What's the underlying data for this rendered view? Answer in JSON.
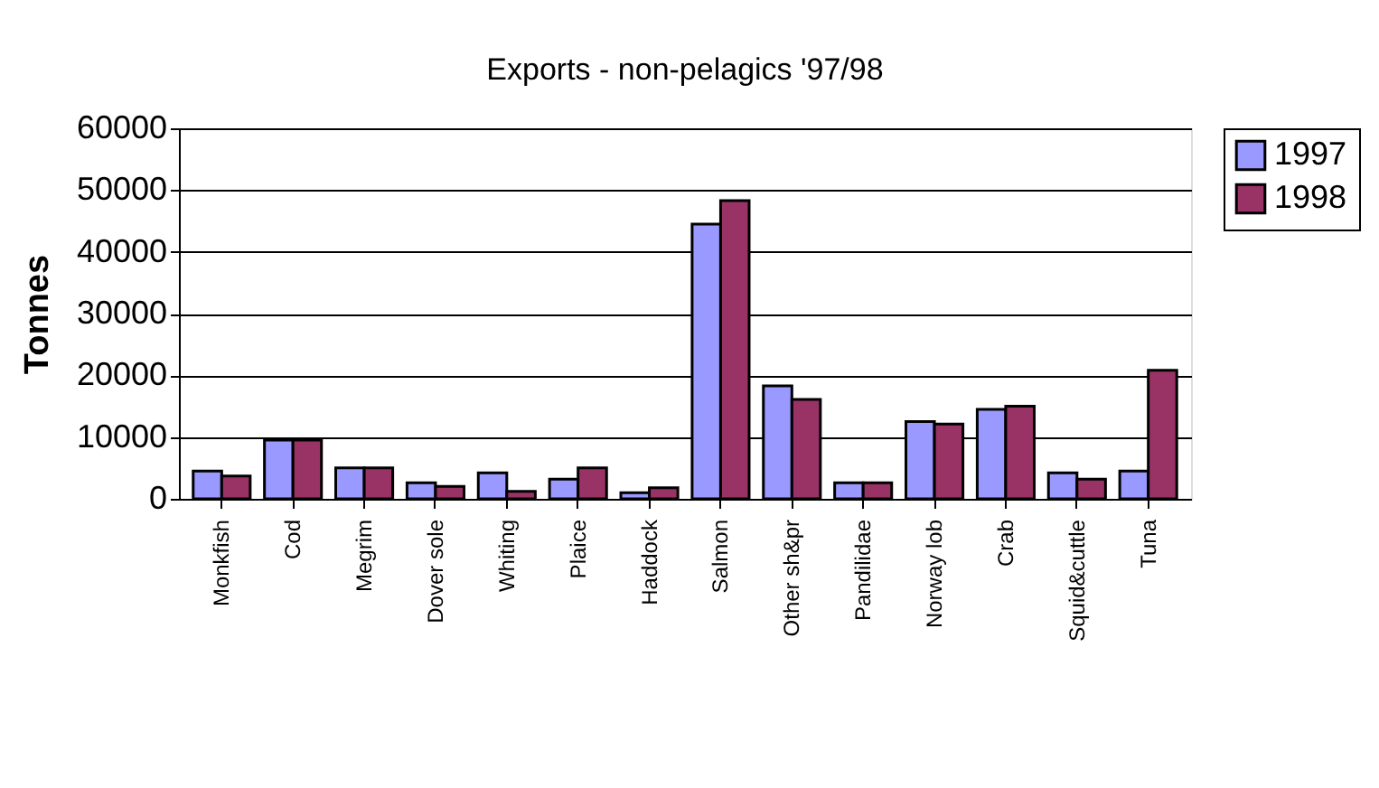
{
  "chart_data": {
    "type": "bar",
    "title": "Exports - non-pelagics '97/98",
    "ylabel": "Tonnes",
    "categories": [
      "Monkfish",
      "Cod",
      "Megrim",
      "Dover sole",
      "Whiting",
      "Plaice",
      "Haddock",
      "Salmon",
      "Other sh&pr",
      "Pandilidae",
      "Norway lob",
      "Crab",
      "Squid&cuttle",
      "Tuna"
    ],
    "series": [
      {
        "name": "1997",
        "color": "#9999ff",
        "values": [
          4500,
          9500,
          5000,
          2600,
          4200,
          3200,
          1000,
          44500,
          18300,
          2600,
          12500,
          14500,
          4200,
          4500
        ]
      },
      {
        "name": "1998",
        "color": "#993366",
        "values": [
          3700,
          9500,
          5000,
          2000,
          1200,
          5000,
          1800,
          48300,
          16100,
          2600,
          12100,
          15000,
          3200,
          20800
        ]
      }
    ],
    "ylim": [
      0,
      60000
    ],
    "yticks": [
      0,
      10000,
      20000,
      30000,
      40000,
      50000,
      60000
    ],
    "grid": "y",
    "legend": "right"
  }
}
